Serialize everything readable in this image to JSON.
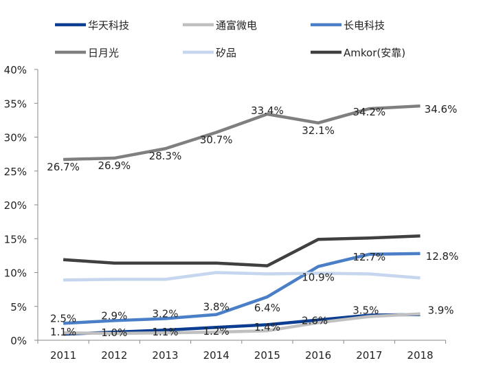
{
  "chart_data": {
    "type": "line",
    "title": "",
    "xlabel": "",
    "ylabel": "",
    "categories": [
      "2011",
      "2012",
      "2013",
      "2014",
      "2015",
      "2016",
      "2017",
      "2018"
    ],
    "ylim": [
      0,
      40
    ],
    "yticks": [
      "0%",
      "5%",
      "10%",
      "15%",
      "20%",
      "25%",
      "30%",
      "35%",
      "40%"
    ],
    "grid": false,
    "legend_position": "top",
    "series": [
      {
        "name": "华天科技",
        "color": "#0b3d91",
        "values": [
          0.9,
          1.2,
          1.5,
          1.9,
          2.3,
          3.0,
          3.7,
          3.8
        ],
        "labels": []
      },
      {
        "name": "通富微电",
        "color": "#c0c0c0",
        "values": [
          1.1,
          1.0,
          1.1,
          1.2,
          1.4,
          2.6,
          3.5,
          3.9
        ],
        "labels": [
          "1.1%",
          "1.0%",
          "1.1%",
          "1.2%",
          "1.4%",
          "2.6%",
          "3.5%",
          "3.9%"
        ]
      },
      {
        "name": "长电科技",
        "color": "#4a7fc8",
        "values": [
          2.5,
          2.9,
          3.2,
          3.8,
          6.4,
          10.9,
          12.7,
          12.8
        ],
        "labels": [
          "2.5%",
          "2.9%",
          "3.2%",
          "3.8%",
          "6.4%",
          "10.9%",
          "12.7%",
          "12.8%"
        ]
      },
      {
        "name": "日月光",
        "color": "#7f7f7f",
        "values": [
          26.7,
          26.9,
          28.3,
          30.7,
          33.4,
          32.1,
          34.2,
          34.6
        ],
        "labels": [
          "26.7%",
          "26.9%",
          "28.3%",
          "30.7%",
          "33.4%",
          "32.1%",
          "34.2%",
          "34.6%"
        ]
      },
      {
        "name": "矽品",
        "color": "#c5d6ee",
        "values": [
          8.9,
          9.0,
          9.0,
          10.0,
          9.8,
          9.9,
          9.8,
          9.2
        ],
        "labels": []
      },
      {
        "name": "Amkor(安靠)",
        "color": "#404040",
        "values": [
          11.9,
          11.4,
          11.4,
          11.4,
          11.0,
          14.9,
          15.1,
          15.4
        ],
        "labels": []
      }
    ]
  }
}
